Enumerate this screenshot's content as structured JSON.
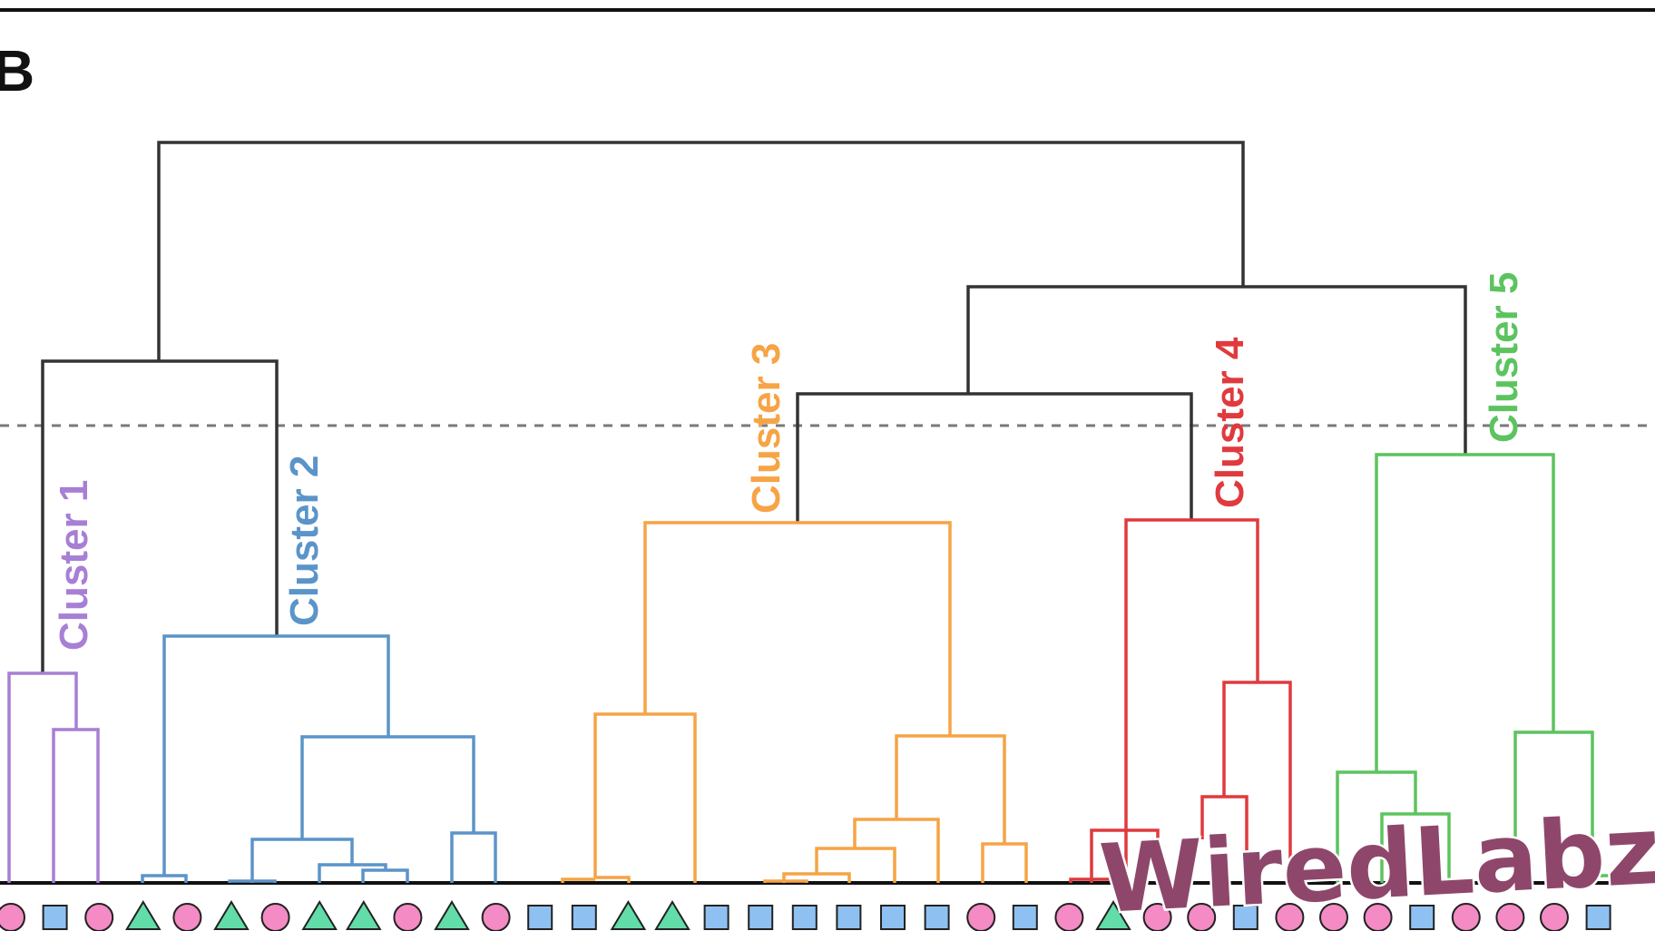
{
  "figure": {
    "panel_letter": "B",
    "frame_color": "#111111",
    "root_color": "#333333",
    "cut_line": {
      "style": "dashed",
      "color": "#7a7a7a"
    }
  },
  "clusters": [
    {
      "label": "Cluster 1",
      "color": "#a77fd4"
    },
    {
      "label": "Cluster 2",
      "color": "#5b94c9"
    },
    {
      "label": "Cluster 3",
      "color": "#f6a445"
    },
    {
      "label": "Cluster 4",
      "color": "#e03a3e"
    },
    {
      "label": "Cluster 5",
      "color": "#5cc45f"
    }
  ],
  "leaf_markers": [
    "circle",
    "square",
    "circle",
    "triangle",
    "circle",
    "triangle",
    "circle",
    "triangle",
    "triangle",
    "circle",
    "triangle",
    "circle",
    "square",
    "square",
    "triangle",
    "triangle",
    "square",
    "square",
    "square",
    "square",
    "square",
    "square",
    "circle",
    "square",
    "circle",
    "triangle",
    "circle",
    "circle",
    "square",
    "circle",
    "circle",
    "circle",
    "square",
    "circle",
    "circle",
    "circle",
    "square"
  ],
  "marker_styles": {
    "circle": "#f48bc4",
    "square": "#8ec1f2",
    "triangle": "#62dca8"
  },
  "watermark": {
    "text": "WiredLabz",
    "fill": "#8e476a",
    "outline": "#ffffff"
  }
}
